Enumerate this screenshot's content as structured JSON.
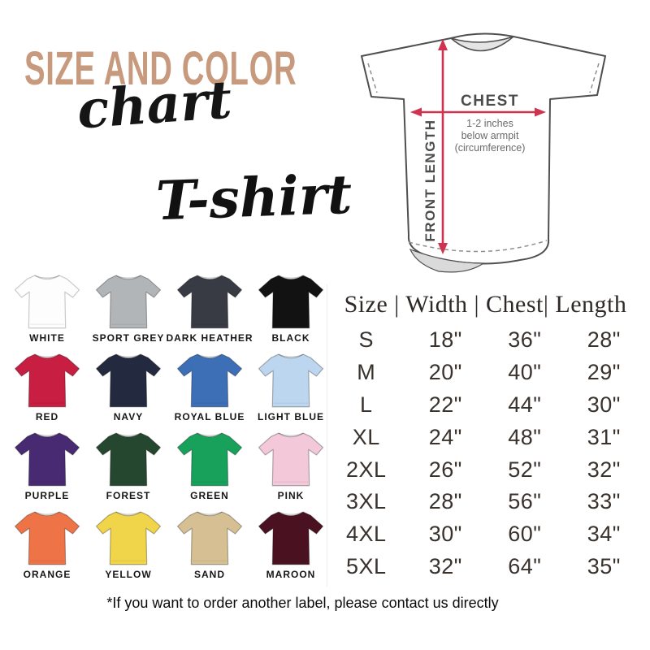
{
  "theme": {
    "tan": "#c89a7d",
    "red": "#cf3350",
    "ink": "#161616"
  },
  "title": {
    "line1": "SIZE AND COLOR",
    "line2": "chart",
    "product": "T-shirt"
  },
  "diagram": {
    "chest_label": "CHEST",
    "chest_note": [
      "1-2 inches",
      "below armpit",
      "(circumference)"
    ],
    "front_length_label": "FRONT LENGTH",
    "arrow_color": "#cf3350"
  },
  "color_grid": {
    "items": [
      {
        "name": "WHITE",
        "hex": "#fdfdfd"
      },
      {
        "name": "SPORT GREY",
        "hex": "#b2b5b8"
      },
      {
        "name": "DARK HEATHER",
        "hex": "#383b44"
      },
      {
        "name": "BLACK",
        "hex": "#121212"
      },
      {
        "name": "RED",
        "hex": "#c81e42"
      },
      {
        "name": "NAVY",
        "hex": "#232a40"
      },
      {
        "name": "ROYAL BLUE",
        "hex": "#3d6fb7"
      },
      {
        "name": "LIGHT BLUE",
        "hex": "#bdd6f0"
      },
      {
        "name": "PURPLE",
        "hex": "#472a71"
      },
      {
        "name": "FOREST",
        "hex": "#25472f"
      },
      {
        "name": "GREEN",
        "hex": "#18a15b"
      },
      {
        "name": "PINK",
        "hex": "#f3c8d8"
      },
      {
        "name": "ORANGE",
        "hex": "#ee7447"
      },
      {
        "name": "YELLOW",
        "hex": "#f0d449"
      },
      {
        "name": "SAND",
        "hex": "#d6c093"
      },
      {
        "name": "MAROON",
        "hex": "#4a1220"
      }
    ]
  },
  "size_table": {
    "header_text": "Size | Width | Chest| Length",
    "columns": [
      "Size",
      "Width",
      "Chest",
      "Length"
    ],
    "rows": [
      [
        "S",
        "18\"",
        "36\"",
        "28\""
      ],
      [
        "M",
        "20\"",
        "40\"",
        "29\""
      ],
      [
        "L",
        "22\"",
        "44\"",
        "30\""
      ],
      [
        "XL",
        "24\"",
        "48\"",
        "31\""
      ],
      [
        "2XL",
        "26\"",
        "52\"",
        "32\""
      ],
      [
        "3XL",
        "28\"",
        "56\"",
        "33\""
      ],
      [
        "4XL",
        "30\"",
        "60\"",
        "34\""
      ],
      [
        "5XL",
        "32\"",
        "64\"",
        "35\""
      ]
    ]
  },
  "footnote": "*If you want to order another label, please contact us directly",
  "chart_data": {
    "type": "table",
    "title": "Size and Color Chart — T-shirt",
    "columns": [
      "Size",
      "Width",
      "Chest",
      "Length"
    ],
    "rows": [
      [
        "S",
        "18\"",
        "36\"",
        "28\""
      ],
      [
        "M",
        "20\"",
        "40\"",
        "29\""
      ],
      [
        "L",
        "22\"",
        "44\"",
        "30\""
      ],
      [
        "XL",
        "24\"",
        "48\"",
        "31\""
      ],
      [
        "2XL",
        "26\"",
        "52\"",
        "32\""
      ],
      [
        "3XL",
        "28\"",
        "56\"",
        "33\""
      ],
      [
        "4XL",
        "30\"",
        "60\"",
        "34\""
      ],
      [
        "5XL",
        "32\"",
        "64\"",
        "35\""
      ]
    ],
    "color_names": [
      "WHITE",
      "SPORT GREY",
      "DARK HEATHER",
      "BLACK",
      "RED",
      "NAVY",
      "ROYAL BLUE",
      "LIGHT BLUE",
      "PURPLE",
      "FOREST",
      "GREEN",
      "PINK",
      "ORANGE",
      "YELLOW",
      "SAND",
      "MAROON"
    ],
    "measurement_notes": [
      "CHEST: 1-2 inches below armpit (circumference)",
      "FRONT LENGTH"
    ]
  }
}
